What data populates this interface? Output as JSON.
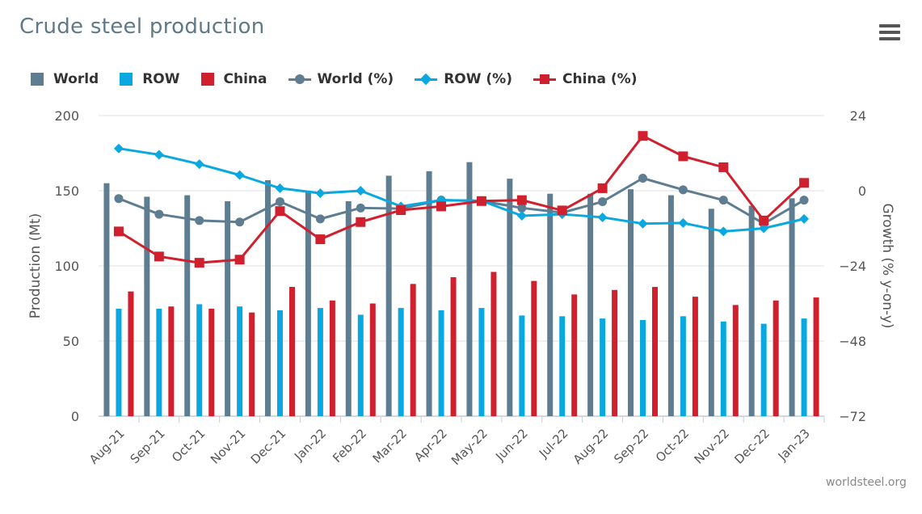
{
  "title": "Crude steel production",
  "credit": "worldsteel.org",
  "menu_icon": "hamburger-menu-icon",
  "legend": [
    {
      "label": "World",
      "kind": "bar",
      "color": "#5e7d91"
    },
    {
      "label": "ROW",
      "kind": "bar",
      "color": "#09a8e0"
    },
    {
      "label": "China",
      "kind": "bar",
      "color": "#d0202e"
    },
    {
      "label": "World (%)",
      "kind": "line-circle",
      "color": "#5e7d91"
    },
    {
      "label": "ROW (%)",
      "kind": "line-diamond",
      "color": "#09a8e0"
    },
    {
      "label": "China (%)",
      "kind": "line-square",
      "color": "#d0202e"
    }
  ],
  "chart_data": {
    "type": "bar",
    "categories": [
      "Aug-21",
      "Sep-21",
      "Oct-21",
      "Nov-21",
      "Dec-21",
      "Jan-22",
      "Feb-22",
      "Mar-22",
      "Apr-22",
      "May-22",
      "Jun-22",
      "Jul-22",
      "Aug-22",
      "Sep-22",
      "Oct-22",
      "Nov-22",
      "Dec-22",
      "Jan-23"
    ],
    "ylabel": "Production (Mt)",
    "y2label": "Growth (% y-on-y)",
    "ylim": [
      0,
      200
    ],
    "y2lim": [
      -72,
      24
    ],
    "yticks": [
      "0",
      "50",
      "100",
      "150",
      "200"
    ],
    "y2ticks": [
      "−72",
      "−48",
      "−24",
      "0",
      "24"
    ],
    "grid": true,
    "legend_position": "top-left",
    "series": [
      {
        "name": "World",
        "type": "bar",
        "color": "#5e7d91",
        "values": [
          155,
          146,
          147,
          143,
          157,
          150,
          143,
          160,
          163,
          169,
          158,
          148,
          148,
          151,
          147,
          138,
          140,
          145
        ]
      },
      {
        "name": "ROW",
        "type": "bar",
        "color": "#09a8e0",
        "values": [
          71.5,
          71.5,
          74.5,
          73,
          70.5,
          72,
          67.5,
          72,
          70.5,
          72,
          67,
          66.5,
          65,
          64,
          66.5,
          63,
          61.5,
          65
        ]
      },
      {
        "name": "China",
        "type": "bar",
        "color": "#d0202e",
        "values": [
          83,
          73,
          71.5,
          69,
          86,
          77,
          75,
          88,
          92.5,
          96,
          90,
          81,
          84,
          86,
          79.5,
          74,
          77,
          79
        ]
      },
      {
        "name": "World (%)",
        "type": "line",
        "marker": "circle",
        "color": "#5e7d91",
        "values": [
          -2.5,
          -7.5,
          -9.5,
          -10,
          -3.5,
          -9,
          -5.5,
          -5.7,
          -3,
          -3.3,
          -5.5,
          -7,
          -3.5,
          4,
          0.3,
          -3,
          -10.5,
          -3
        ]
      },
      {
        "name": "ROW (%)",
        "type": "line",
        "marker": "diamond",
        "color": "#09a8e0",
        "values": [
          13.5,
          11.5,
          8.5,
          5,
          0.8,
          -0.8,
          0,
          -5,
          -3,
          -3.2,
          -8,
          -7.5,
          -8.5,
          -10.5,
          -10.3,
          -13,
          -12,
          -9
        ]
      },
      {
        "name": "China (%)",
        "type": "line",
        "marker": "square",
        "color": "#d0202e",
        "values": [
          -13,
          -21,
          -23,
          -22,
          -6.5,
          -15.5,
          -10,
          -6.2,
          -5,
          -3.3,
          -3,
          -6.3,
          0.8,
          17.5,
          11,
          7.5,
          -9.5,
          2.5
        ]
      }
    ]
  }
}
